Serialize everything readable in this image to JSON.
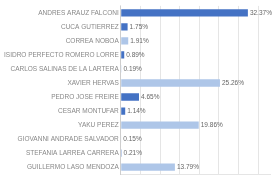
{
  "chart_data": {
    "type": "bar",
    "orientation": "horizontal",
    "categories": [
      "ANDRES ARAUZ FALCONI",
      "CUCA GUTIERREZ",
      "CORREA NOBOA",
      "ISIDRO PERFECTO ROMERO LORRE",
      "CARLOS SALINAS DE LA LARTERA",
      "XAVIER HERVAS",
      "PEDRO JOSE FREIRE",
      "CESAR MONTUFAR",
      "YAKU PEREZ",
      "GIOVANNI ANDRADE SALVADOR",
      "STEFANIA LARREA CARRERA",
      "GUILLERMO LASO MENDOZA"
    ],
    "values": [
      32.37,
      1.75,
      1.91,
      0.89,
      0.19,
      25.26,
      4.65,
      1.14,
      19.86,
      0.15,
      0.21,
      13.79
    ],
    "value_labels": [
      "32.37%",
      "1.75%",
      "1.91%",
      "0.89%",
      "0.19%",
      "25.26%",
      "4.65%",
      "1.14%",
      "19.86%",
      "0.15%",
      "0.21%",
      "13.79%"
    ],
    "colors": [
      "#4472c4",
      "#4472c4",
      "#aec6e8",
      "#4472c4",
      "#aec6e8",
      "#aec6e8",
      "#4472c4",
      "#4472c4",
      "#aec6e8",
      "#aec6e8",
      "#4472c4",
      "#aec6e8"
    ],
    "xlim": [
      0,
      38
    ],
    "xticks": [
      0,
      5,
      10,
      15,
      20,
      25,
      30,
      35
    ],
    "grid": true,
    "data_labels": true,
    "tick_labels": "y"
  }
}
